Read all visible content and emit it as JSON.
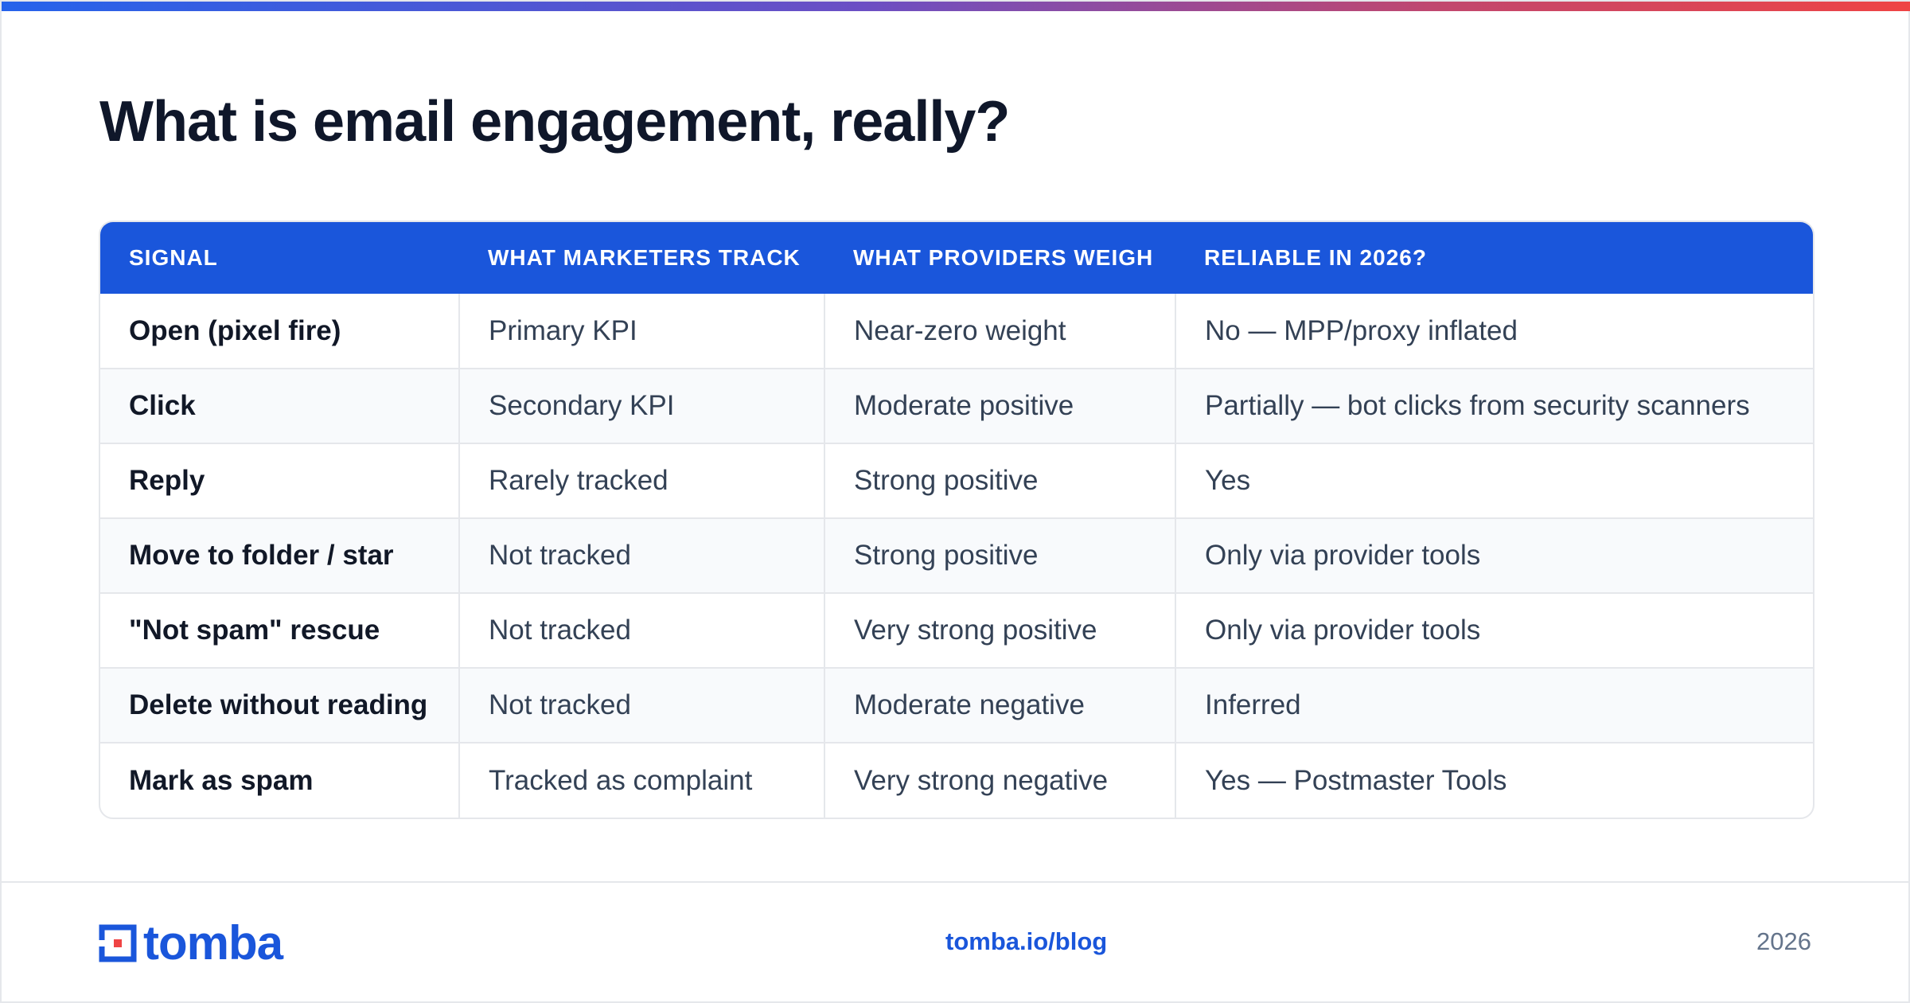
{
  "title": "What is email engagement, really?",
  "colors": {
    "accent": "#1a56db",
    "gradient_start": "#2563eb",
    "gradient_end": "#ef4444"
  },
  "table": {
    "headers": [
      "SIGNAL",
      "WHAT MARKETERS TRACK",
      "WHAT PROVIDERS WEIGH",
      "RELIABLE IN 2026?"
    ],
    "rows": [
      [
        "Open (pixel fire)",
        "Primary KPI",
        "Near-zero weight",
        "No — MPP/proxy inflated"
      ],
      [
        "Click",
        "Secondary KPI",
        "Moderate positive",
        "Partially — bot clicks from security scanners"
      ],
      [
        "Reply",
        "Rarely tracked",
        "Strong positive",
        "Yes"
      ],
      [
        "Move to folder / star",
        "Not tracked",
        "Strong positive",
        "Only via provider tools"
      ],
      [
        "\"Not spam\" rescue",
        "Not tracked",
        "Very strong positive",
        "Only via provider tools"
      ],
      [
        "Delete without reading",
        "Not tracked",
        "Moderate negative",
        "Inferred"
      ],
      [
        "Mark as spam",
        "Tracked as complaint",
        "Very strong negative",
        "Yes — Postmaster Tools"
      ]
    ]
  },
  "footer": {
    "logo_text": "tomba",
    "link": "tomba.io/blog",
    "year": "2026"
  }
}
